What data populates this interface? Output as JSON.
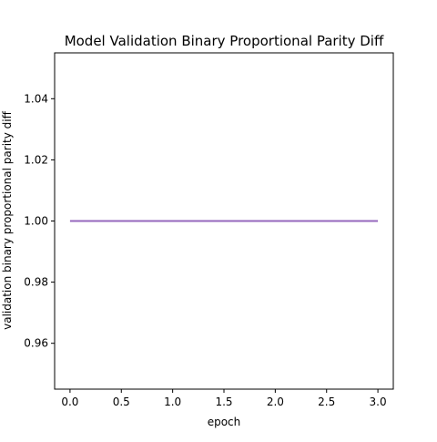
{
  "chart_data": {
    "type": "line",
    "title": "Model Validation Binary Proportional Parity Diff",
    "xlabel": "epoch",
    "ylabel": "validation binary proportional parity diff",
    "xlim": [
      -0.15,
      3.15
    ],
    "ylim": [
      0.945,
      1.055
    ],
    "xticks": [
      0.0,
      0.5,
      1.0,
      1.5,
      2.0,
      2.5,
      3.0
    ],
    "xtick_labels": [
      "0.0",
      "0.5",
      "1.0",
      "1.5",
      "2.0",
      "2.5",
      "3.0"
    ],
    "yticks": [
      0.96,
      0.98,
      1.0,
      1.02,
      1.04
    ],
    "ytick_labels": [
      "0.96",
      "0.98",
      "1.00",
      "1.02",
      "1.04"
    ],
    "grid": false,
    "series": [
      {
        "color": "#9467bd",
        "x": [
          0,
          1,
          2,
          3
        ],
        "y": [
          1.0,
          1.0,
          1.0,
          1.0
        ]
      }
    ]
  }
}
